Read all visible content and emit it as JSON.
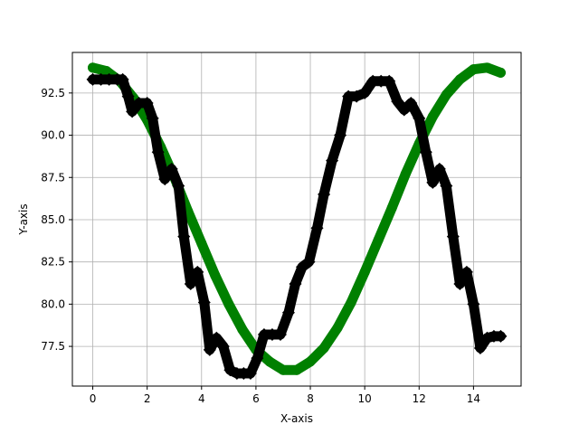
{
  "chart_data": {
    "type": "line",
    "title": "",
    "xlabel": "X-axis",
    "ylabel": "Y-axis",
    "xlim": [
      -0.75,
      15.75
    ],
    "ylim": [
      75.15,
      94.9
    ],
    "grid": true,
    "x_ticks": [
      0,
      2,
      4,
      6,
      8,
      10,
      12,
      14
    ],
    "y_ticks": [
      77.5,
      80.0,
      82.5,
      85.0,
      87.5,
      90.0,
      92.5
    ],
    "x_tick_labels": [
      "0",
      "2",
      "4",
      "6",
      "8",
      "10",
      "12",
      "14"
    ],
    "y_tick_labels": [
      "77.5",
      "80.0",
      "82.5",
      "85.0",
      "87.5",
      "90.0",
      "92.5"
    ],
    "series": [
      {
        "color": "#008000",
        "marker": "circle",
        "x": [
          0,
          0.5,
          1,
          1.5,
          2,
          2.5,
          3,
          3.5,
          4,
          4.5,
          5,
          5.5,
          6,
          6.5,
          7,
          7.5,
          8,
          8.5,
          9,
          9.5,
          10,
          10.5,
          11,
          11.5,
          12,
          12.5,
          13,
          13.5,
          14,
          14.5,
          15
        ],
        "values": [
          94.0,
          93.8,
          93.2,
          92.2,
          90.9,
          89.3,
          87.5,
          85.5,
          83.6,
          81.7,
          80.0,
          78.5,
          77.3,
          76.6,
          76.1,
          76.1,
          76.6,
          77.4,
          78.6,
          80.1,
          81.9,
          83.8,
          85.7,
          87.7,
          89.5,
          91.1,
          92.4,
          93.3,
          93.9,
          94.0,
          93.7
        ]
      },
      {
        "color": "#000000",
        "marker": "diamond",
        "x": [
          0,
          0.3,
          0.6,
          0.9,
          1.1,
          1.3,
          1.45,
          1.7,
          2.0,
          2.2,
          2.4,
          2.65,
          2.9,
          3.15,
          3.35,
          3.6,
          3.85,
          4.1,
          4.3,
          4.55,
          4.8,
          5.05,
          5.3,
          5.55,
          5.8,
          6.05,
          6.3,
          6.6,
          6.9,
          7.2,
          7.45,
          7.7,
          7.95,
          8.25,
          8.5,
          8.8,
          9.1,
          9.4,
          9.7,
          10.0,
          10.3,
          10.6,
          10.9,
          11.2,
          11.45,
          11.7,
          12.0,
          12.25,
          12.5,
          12.75,
          13.0,
          13.25,
          13.5,
          13.75,
          14.0,
          14.25,
          14.5,
          14.75,
          15.0
        ],
        "values": [
          93.3,
          93.3,
          93.3,
          93.3,
          93.3,
          92.3,
          91.4,
          91.9,
          91.9,
          91.0,
          89.0,
          87.4,
          88.0,
          87.0,
          84.0,
          81.2,
          81.9,
          80.1,
          77.3,
          78.0,
          77.5,
          76.1,
          75.9,
          75.9,
          75.9,
          76.8,
          78.2,
          78.2,
          78.2,
          79.5,
          81.2,
          82.2,
          82.5,
          84.5,
          86.5,
          88.5,
          90.0,
          92.3,
          92.3,
          92.5,
          93.2,
          93.2,
          93.2,
          92.0,
          91.5,
          91.9,
          91.0,
          89.0,
          87.2,
          88.0,
          87.0,
          84.0,
          81.2,
          81.9,
          80.0,
          77.4,
          78.0,
          78.1,
          78.1
        ]
      }
    ]
  }
}
